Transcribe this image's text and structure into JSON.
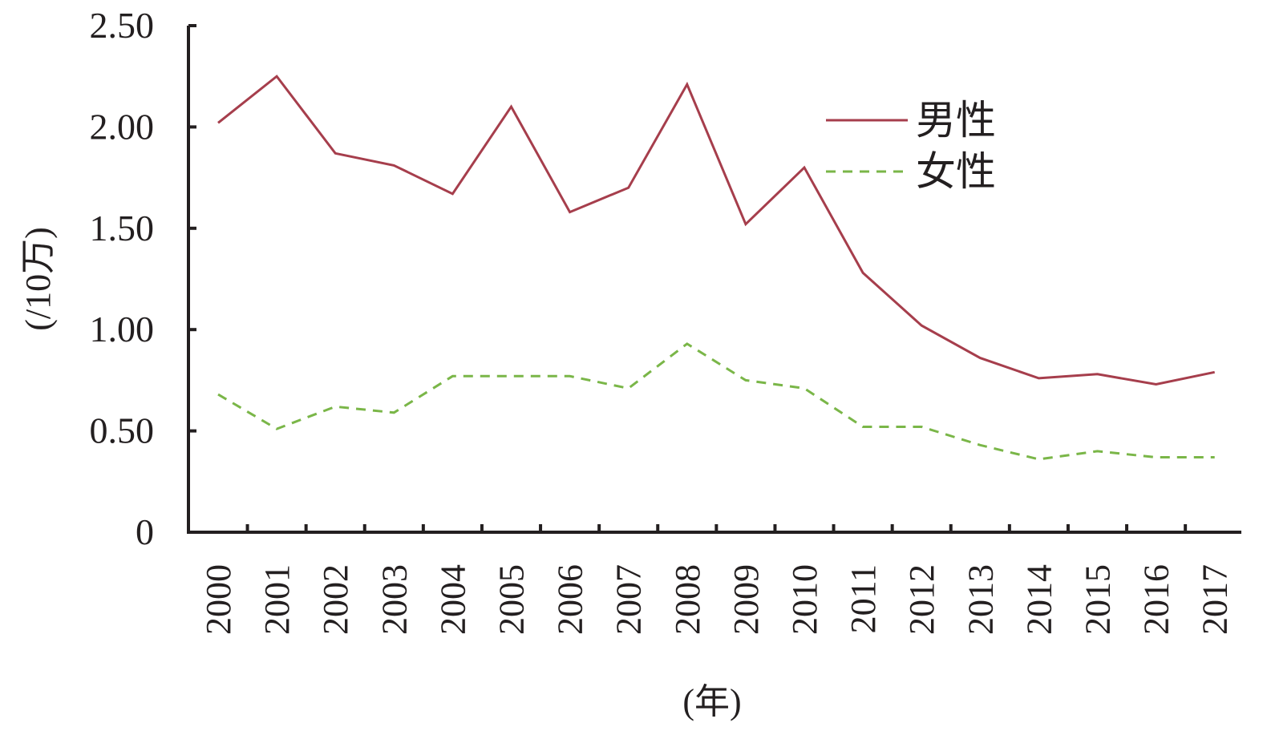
{
  "chart_data": {
    "type": "line",
    "ylabel": "(/10万)",
    "xlabel": "(年)",
    "ylim": [
      0,
      2.5
    ],
    "y_ticks": [
      0,
      0.5,
      1.0,
      1.5,
      2.0,
      2.5
    ],
    "y_tick_labels": [
      "0",
      "0.50",
      "1.00",
      "1.50",
      "2.00",
      "2.50"
    ],
    "categories": [
      "2000",
      "2001",
      "2002",
      "2003",
      "2004",
      "2005",
      "2006",
      "2007",
      "2008",
      "2009",
      "2010",
      "2011",
      "2012",
      "2013",
      "2014",
      "2015",
      "2016",
      "2017"
    ],
    "series": [
      {
        "name": "男性",
        "color": "#a63e4c",
        "dash": "solid",
        "values": [
          2.02,
          2.25,
          1.87,
          1.81,
          1.67,
          2.1,
          1.58,
          1.7,
          2.21,
          1.52,
          1.8,
          1.28,
          1.02,
          0.86,
          0.76,
          0.78,
          0.73,
          0.79
        ]
      },
      {
        "name": "女性",
        "color": "#7ab648",
        "dash": "dashed",
        "values": [
          0.68,
          0.51,
          0.62,
          0.59,
          0.77,
          0.77,
          0.77,
          0.71,
          0.93,
          0.75,
          0.71,
          0.52,
          0.52,
          0.43,
          0.36,
          0.4,
          0.37,
          0.37
        ]
      }
    ],
    "grid": false,
    "legend_position": "top-right"
  }
}
